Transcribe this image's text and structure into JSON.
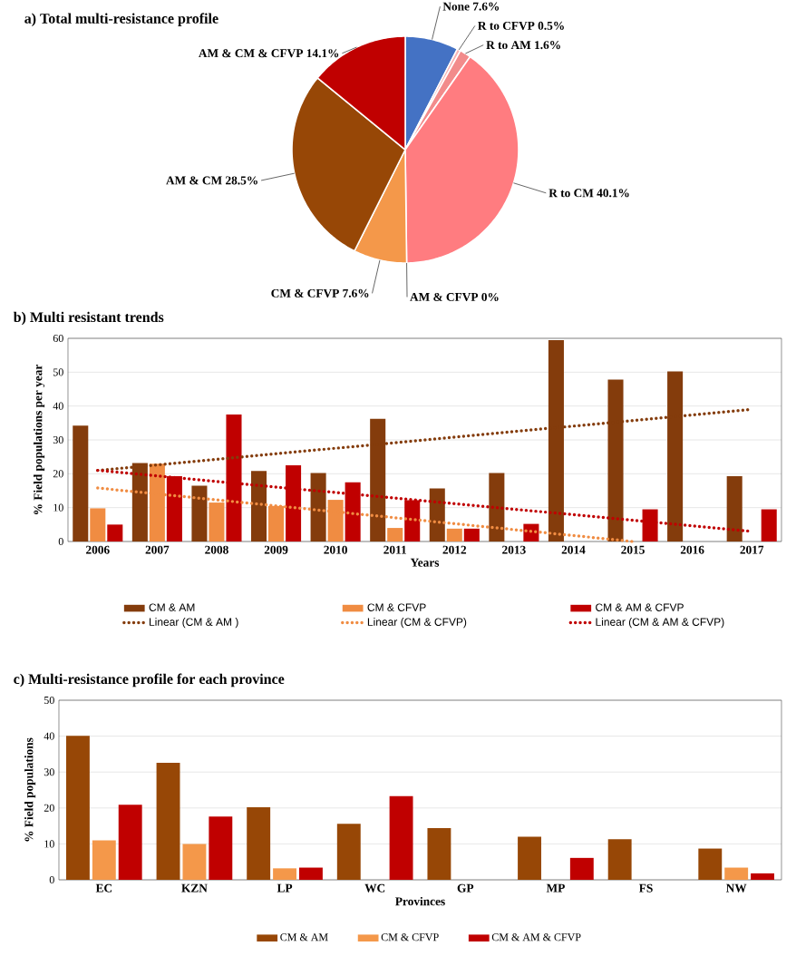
{
  "chart_data": [
    {
      "type": "pie",
      "title": "a)  Total multi-resistance profile",
      "categories": [
        "None",
        "R to CFVP",
        "R to AM",
        "R to CM",
        "AM & CFVP",
        "CM & CFVP",
        "AM & CM",
        "AM & CM & CFVP"
      ],
      "values": [
        7.6,
        0.5,
        1.6,
        40.1,
        0,
        7.6,
        28.5,
        14.1
      ],
      "value_labels": [
        "7.6%",
        "0.5%",
        "1.6%",
        "40.1%",
        "0%",
        "7.6%",
        "28.5%",
        "14.1%"
      ],
      "colors": [
        "#4472c4",
        "#f8b4b4",
        "#f28b8b",
        "#ff7c80",
        "#d9d9d9",
        "#f4984a",
        "#974706",
        "#c00000"
      ]
    },
    {
      "type": "bar",
      "title": "b)  Multi resistant trends",
      "xlabel": "Years",
      "ylabel": "% Field populations per year",
      "x": [
        2006,
        2007,
        2008,
        2009,
        2010,
        2011,
        2012,
        2013,
        2014,
        2015,
        2016,
        2017
      ],
      "xlim": [
        2005.5,
        2017.5
      ],
      "xticks": [
        2006,
        2007,
        2008,
        2009,
        2010,
        2011,
        2012,
        2013,
        2014,
        2015,
        2016,
        2017
      ],
      "ylim": [
        0,
        60
      ],
      "yticks": [
        0,
        10,
        20,
        30,
        40,
        50,
        60
      ],
      "grid": "y",
      "legend": "bottom",
      "series": [
        {
          "name": "CM & AM",
          "color": "#843c0c",
          "values": [
            34.2,
            23.2,
            16.5,
            20.8,
            20.2,
            36.2,
            15.7,
            20.2,
            59.5,
            47.8,
            50.2,
            19.3
          ]
        },
        {
          "name": "CM & CFVP",
          "color": "#f08c42",
          "values": [
            9.8,
            23.0,
            11.5,
            10.5,
            12.3,
            4.0,
            3.8,
            0,
            0,
            0,
            0,
            0
          ]
        },
        {
          "name": "CM & AM & CFVP",
          "color": "#c00000",
          "values": [
            5.0,
            19.3,
            37.5,
            22.5,
            17.5,
            12.2,
            3.8,
            5.2,
            0,
            9.5,
            0,
            9.5
          ]
        },
        {
          "name": "Linear (CM & AM )",
          "type": "line",
          "line_style": "dotted",
          "color": "#843c0c",
          "x": [
            2006,
            2017
          ],
          "values": [
            21.0,
            39.0
          ]
        },
        {
          "name": "Linear (CM & CFVP)",
          "type": "line",
          "line_style": "dotted",
          "color": "#f08c42",
          "x": [
            2006,
            2015
          ],
          "values": [
            15.8,
            0
          ]
        },
        {
          "name": "Linear (CM & AM & CFVP)",
          "type": "line",
          "line_style": "dotted",
          "color": "#c00000",
          "x": [
            2006,
            2017
          ],
          "values": [
            21.0,
            3.0
          ]
        }
      ]
    },
    {
      "type": "bar",
      "title": "c) Multi-resistance profile for each province",
      "xlabel": "Provinces",
      "ylabel": "% Field populations",
      "categories": [
        "EC",
        "KZN",
        "LP",
        "WC",
        "GP",
        "MP",
        "FS",
        "NW"
      ],
      "ylim": [
        0,
        50
      ],
      "yticks": [
        0,
        10,
        20,
        30,
        40,
        50
      ],
      "grid": "y",
      "legend": "bottom",
      "series": [
        {
          "name": "CM & AM",
          "color": "#974706",
          "values": [
            40.1,
            32.6,
            20.2,
            15.6,
            14.4,
            12.0,
            11.3,
            8.7
          ]
        },
        {
          "name": "CM & CFVP",
          "color": "#f4984a",
          "values": [
            11.0,
            10.0,
            3.2,
            0,
            0,
            0,
            0,
            3.4
          ]
        },
        {
          "name": "CM & AM & CFVP",
          "color": "#c00000",
          "values": [
            20.9,
            17.6,
            3.4,
            23.3,
            0,
            6.1,
            0,
            1.8
          ]
        }
      ]
    }
  ]
}
